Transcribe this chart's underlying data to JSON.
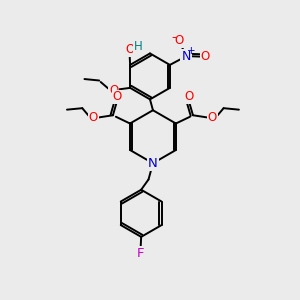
{
  "bg_color": "#ebebeb",
  "bond_color": "#000000",
  "bond_width": 1.4,
  "text_colors": {
    "O": "#ff0000",
    "N": "#0000cd",
    "F": "#cc00cc",
    "H": "#008080",
    "C": "#000000"
  },
  "font_size": 8.5
}
